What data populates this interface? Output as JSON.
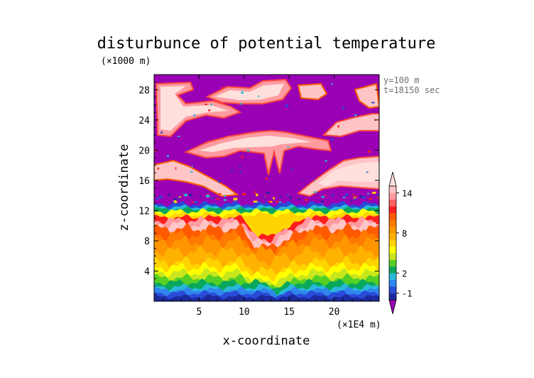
{
  "chart_data": {
    "type": "heatmap",
    "title": "disturbunce of potential temperature",
    "y_unit": "(×1000 m)",
    "x_unit": "(×1E4 m)",
    "xlabel": "x-coordinate",
    "ylabel": "z-coordinate",
    "annotations": [
      "y=100 m",
      "t=18150 sec"
    ],
    "xlim": [
      0,
      25
    ],
    "ylim": [
      0,
      30
    ],
    "x_ticks": [
      5,
      10,
      15,
      20
    ],
    "y_ticks": [
      4,
      8,
      12,
      16,
      20,
      24,
      28
    ],
    "colorbar": {
      "levels": [
        -3,
        -2,
        -1,
        0,
        1,
        2,
        3,
        4,
        5,
        6,
        7,
        8,
        9,
        10,
        11,
        12,
        13,
        14,
        15,
        16
      ],
      "labels": [
        "-1",
        "2",
        "8",
        "14"
      ],
      "colors": [
        "#9a00b4",
        "#1c2a9e",
        "#2a4ad8",
        "#2f86ee",
        "#28b8d8",
        "#0aa85c",
        "#55cf24",
        "#c8e61c",
        "#ffff00",
        "#ffd400",
        "#ffb200",
        "#ff9600",
        "#ff7a00",
        "#ff5a00",
        "#ff1e1e",
        "#ff6060",
        "#ff9aa0",
        "#ffc4c6",
        "#ffe0dc"
      ],
      "extend": "both"
    },
    "layers": [
      {
        "z_range": [
          0,
          1.5
        ],
        "value": "-1 to 0",
        "note": "blue band along ground with undulating top"
      },
      {
        "z_range": [
          1.5,
          4
        ],
        "value": "2 to 5",
        "note": "green to yellow"
      },
      {
        "z_range": [
          4,
          9
        ],
        "value": "6 to 10",
        "note": "orange"
      },
      {
        "z_range": [
          9,
          11.5
        ],
        "value": "11 to 14",
        "note": "red and pink"
      },
      {
        "z_range": [
          11.5,
          13
        ],
        "value": "-1 to 1",
        "note": "thin blue/cyan transition"
      },
      {
        "z_range": [
          13,
          30
        ],
        "value": "< -3",
        "note": "magenta background with pink filaments (values >14) near z = 16-18, 19-23 and 24-29"
      }
    ]
  }
}
